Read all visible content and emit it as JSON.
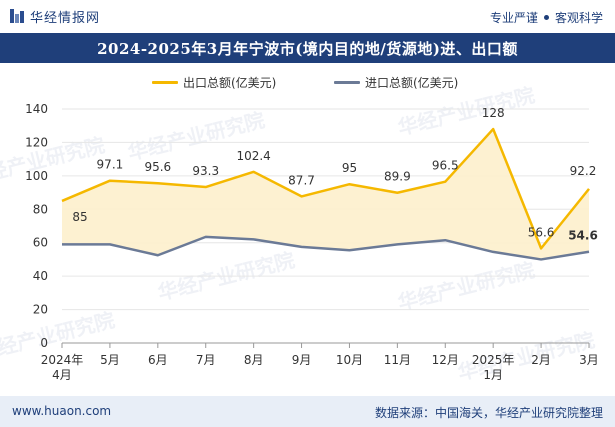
{
  "header": {
    "brand": "华经情报网",
    "slogan_left": "专业严谨",
    "slogan_right": "客观科学"
  },
  "title": "2024-2025年3月年宁波市(境内目的地/货源地)进、出口额",
  "footer": {
    "website": "www.huaon.com",
    "source": "数据来源：中国海关，华经产业研究院整理"
  },
  "watermark": "华经产业研究院",
  "colors": {
    "brand": "#1f3f7a",
    "export": "#f5b800",
    "export_fill": "#fdf0cc",
    "import": "#6b7a96",
    "grid": "#e6e6e6"
  },
  "chart_data": {
    "type": "line",
    "categories": [
      [
        "2024年",
        "4月"
      ],
      [
        "5月"
      ],
      [
        "6月"
      ],
      [
        "7月"
      ],
      [
        "8月"
      ],
      [
        "9月"
      ],
      [
        "10月"
      ],
      [
        "11月"
      ],
      [
        "12月"
      ],
      [
        "2025年",
        "1月"
      ],
      [
        "2月"
      ],
      [
        "3月"
      ]
    ],
    "series": [
      {
        "name": "出口总额(亿美元)",
        "values": [
          85,
          97.1,
          95.6,
          93.3,
          102.4,
          87.7,
          95,
          89.9,
          96.5,
          128,
          56.6,
          92.2
        ],
        "labels": [
          "85",
          "97.1",
          "95.6",
          "93.3",
          "102.4",
          "87.7",
          "95",
          "89.9",
          "96.5",
          "128",
          "56.6",
          "92.2"
        ],
        "area_fill": true
      },
      {
        "name": "进口总额(亿美元)",
        "values": [
          59,
          59,
          52.5,
          63.5,
          62,
          57.5,
          55.5,
          59,
          61.5,
          54.5,
          50,
          54.6
        ],
        "labels": [
          "",
          "",
          "",
          "",
          "",
          "",
          "",
          "",
          "",
          "",
          "",
          "54.6"
        ]
      }
    ],
    "yticks": [
      "0",
      "20",
      "40",
      "60",
      "80",
      "100",
      "120",
      "140"
    ],
    "ylim": [
      0,
      140
    ],
    "grid": true,
    "legend_position": "top-center"
  }
}
